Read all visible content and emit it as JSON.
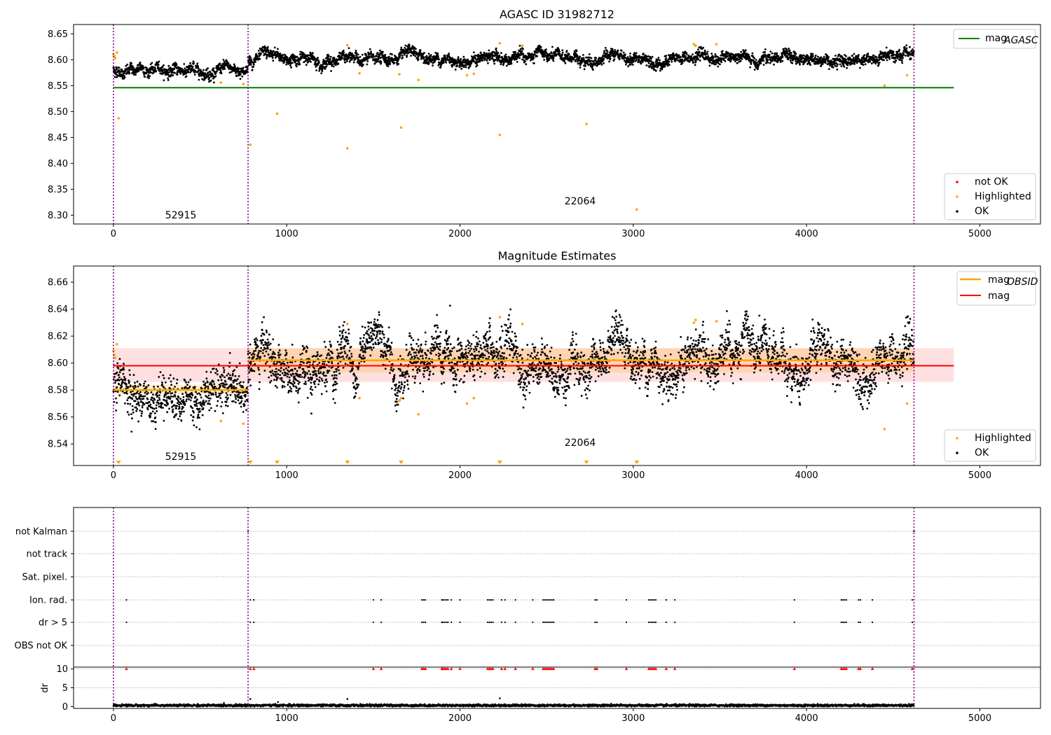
{
  "figure": {
    "panels": {
      "top": {
        "title": "AGASC ID 31982712",
        "legend": {
          "line": {
            "label": "mag",
            "sub": "AGASC"
          },
          "markers": [
            "not OK",
            "Highlighted",
            "OK"
          ]
        },
        "annotations": [
          "52915",
          "22064"
        ]
      },
      "middle": {
        "title": "Magnitude Estimates",
        "legend": {
          "line1": {
            "label": "mag",
            "sub": "OBSID"
          },
          "line2": {
            "label": "mag"
          },
          "markers": [
            "Highlighted",
            "OK"
          ]
        },
        "annotations": [
          "52915",
          "22064"
        ]
      },
      "bottom": {
        "category_labels": [
          "not Kalman",
          "not track",
          "Sat. pixel.",
          "Ion. rad.",
          "dr > 5",
          "OBS not OK"
        ],
        "dr_label": "dr"
      }
    }
  },
  "chart_data": [
    {
      "type": "scatter",
      "panel": "top",
      "title": "AGASC ID 31982712",
      "xlabel": "",
      "ylabel": "",
      "xlim": [
        -230,
        5350
      ],
      "ylim": [
        8.283,
        8.668
      ],
      "xticks": [
        0,
        1000,
        2000,
        3000,
        4000,
        5000
      ],
      "yticks": [
        8.3,
        8.35,
        8.4,
        8.45,
        8.5,
        8.55,
        8.6,
        8.65
      ],
      "grid": false,
      "legend_position": "top-right / lower-right",
      "obsid_boundaries": [
        0,
        777,
        4620
      ],
      "obsid_labels": [
        {
          "x": 380,
          "label": "52915"
        },
        {
          "x": 2700,
          "label": "22064"
        }
      ],
      "mag_agasc": {
        "value": 8.546,
        "x_range": [
          0,
          4850
        ],
        "color": "#008000"
      },
      "ok_series": {
        "name": "OK",
        "color": "#000000",
        "segments": [
          {
            "x_range": [
              0,
              777
            ],
            "mean": 8.58,
            "spread": 0.006
          },
          {
            "x_range": [
              777,
              4620
            ],
            "mean": 8.602,
            "spread": 0.006
          }
        ]
      },
      "highlighted_points": {
        "name": "Highlighted",
        "color": "#ffa500",
        "points": [
          [
            0,
            8.61
          ],
          [
            5,
            8.607
          ],
          [
            10,
            8.603
          ],
          [
            20,
            8.614
          ],
          [
            30,
            8.487
          ],
          [
            620,
            8.556
          ],
          [
            750,
            8.553
          ],
          [
            790,
            8.436
          ],
          [
            945,
            8.496
          ],
          [
            1350,
            8.628
          ],
          [
            1350,
            8.429
          ],
          [
            1420,
            8.574
          ],
          [
            1650,
            8.572
          ],
          [
            1660,
            8.469
          ],
          [
            1760,
            8.561
          ],
          [
            2040,
            8.57
          ],
          [
            2080,
            8.573
          ],
          [
            2230,
            8.632
          ],
          [
            2230,
            8.455
          ],
          [
            2360,
            8.627
          ],
          [
            2730,
            8.476
          ],
          [
            3020,
            8.311
          ],
          [
            3350,
            8.63
          ],
          [
            3360,
            8.627
          ],
          [
            3480,
            8.63
          ],
          [
            4450,
            8.55
          ],
          [
            4580,
            8.57
          ]
        ]
      },
      "not_ok_series": {
        "name": "not OK",
        "color": "#ff0000",
        "points": []
      }
    },
    {
      "type": "scatter",
      "panel": "middle",
      "title": "Magnitude Estimates",
      "xlabel": "",
      "ylabel": "",
      "xlim": [
        -230,
        5350
      ],
      "ylim": [
        8.524,
        8.672
      ],
      "xticks": [
        0,
        1000,
        2000,
        3000,
        4000,
        5000
      ],
      "yticks": [
        8.54,
        8.56,
        8.58,
        8.6,
        8.62,
        8.64,
        8.66
      ],
      "grid": false,
      "legend_position": "top-right / lower-right",
      "obsid_boundaries": [
        0,
        777,
        4620
      ],
      "obsid_labels": [
        {
          "x": 380,
          "label": "52915"
        },
        {
          "x": 2700,
          "label": "22064"
        }
      ],
      "mag_line": {
        "value": 8.598,
        "band": [
          8.586,
          8.611
        ],
        "x_range": [
          0,
          4850
        ],
        "color": "#ff0000"
      },
      "mag_obsid": [
        {
          "value": 8.58,
          "band": [
            8.577,
            8.584
          ],
          "x_range": [
            0,
            777
          ],
          "color": "#ffa500"
        },
        {
          "value": 8.602,
          "band": [
            8.593,
            8.611
          ],
          "x_range": [
            777,
            4620
          ],
          "color": "#ffa500"
        }
      ],
      "ok_series": {
        "name": "OK",
        "color": "#000000",
        "segments": [
          {
            "x_range": [
              0,
              777
            ],
            "mean": 8.579,
            "spread": 0.008
          },
          {
            "x_range": [
              777,
              4620
            ],
            "mean": 8.601,
            "spread": 0.009
          }
        ]
      },
      "highlighted_points": {
        "name": "Highlighted",
        "color": "#ffa500",
        "points": [
          [
            0,
            8.609
          ],
          [
            5,
            8.606
          ],
          [
            10,
            8.604
          ],
          [
            20,
            8.614
          ],
          [
            620,
            8.557
          ],
          [
            750,
            8.555
          ],
          [
            1350,
            8.629
          ],
          [
            1420,
            8.574
          ],
          [
            1650,
            8.572
          ],
          [
            1660,
            8.574
          ],
          [
            1760,
            8.562
          ],
          [
            2040,
            8.57
          ],
          [
            2080,
            8.574
          ],
          [
            2230,
            8.634
          ],
          [
            2360,
            8.629
          ],
          [
            3350,
            8.63
          ],
          [
            3360,
            8.632
          ],
          [
            3480,
            8.631
          ],
          [
            4450,
            8.551
          ],
          [
            4580,
            8.57
          ]
        ]
      },
      "clipped_markers_x": [
        30,
        790,
        945,
        1350,
        1660,
        2230,
        2730,
        3020
      ]
    },
    {
      "type": "scatter",
      "panel": "bottom",
      "categories": [
        "not Kalman",
        "not track",
        "Sat. pixel.",
        "Ion. rad.",
        "dr > 5",
        "OBS not OK"
      ],
      "xlim": [
        -230,
        5350
      ],
      "xticks": [
        0,
        1000,
        2000,
        3000,
        4000,
        5000
      ],
      "dr_ylim": [
        -0.5,
        10.5
      ],
      "dr_yticks": [
        0,
        5,
        10
      ],
      "obsid_boundaries": [
        0,
        777,
        4620
      ],
      "flag_x": [
        75,
        790,
        810,
        1500,
        1545,
        1780,
        1790,
        1800,
        1895,
        1900,
        1910,
        1920,
        1930,
        1950,
        2000,
        2160,
        2170,
        2180,
        2190,
        2240,
        2260,
        2320,
        2420,
        2480,
        2490,
        2500,
        2510,
        2520,
        2530,
        2540,
        2780,
        2790,
        2960,
        3090,
        3100,
        3110,
        3120,
        3130,
        3190,
        3240,
        3930,
        4200,
        4210,
        4220,
        4230,
        4300,
        4310,
        4380,
        4610
      ],
      "not_kalman_x": [
        777,
        4620
      ],
      "dr_series": {
        "name": "dr",
        "mean": 0.3,
        "spread": 0.25,
        "x_range": [
          0,
          4620
        ]
      },
      "dr_outliers": [
        [
          950,
          1.2
        ],
        [
          1350,
          2.0
        ],
        [
          2230,
          2.2
        ],
        [
          790,
          2.0
        ]
      ]
    }
  ]
}
